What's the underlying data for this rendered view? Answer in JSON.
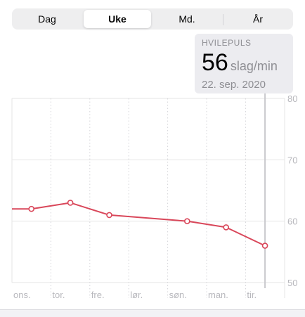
{
  "segments": [
    {
      "label": "Dag",
      "active": false
    },
    {
      "label": "Uke",
      "active": true
    },
    {
      "label": "Md.",
      "active": false
    },
    {
      "label": "År",
      "active": false
    }
  ],
  "tooltip": {
    "title": "HVILEPULS",
    "value": "56",
    "unit": "slag/min",
    "date": "22. sep. 2020"
  },
  "colors": {
    "series": "#d9475a",
    "grid": "#e6e6e6",
    "axis_text": "#b8b8bd",
    "cursor": "#c9c9cd"
  },
  "chart_data": {
    "type": "line",
    "categories": [
      "ons.",
      "tor.",
      "fre.",
      "lør.",
      "søn.",
      "man.",
      "tir."
    ],
    "series": [
      {
        "values": [
          62,
          63,
          61,
          null,
          60,
          59,
          56
        ],
        "leading_value": 62
      }
    ],
    "y_ticks": [
      50,
      60,
      70,
      80
    ],
    "ylim": [
      50,
      80
    ],
    "selected_index": 6,
    "grid": true,
    "y_axis_position": "right"
  }
}
